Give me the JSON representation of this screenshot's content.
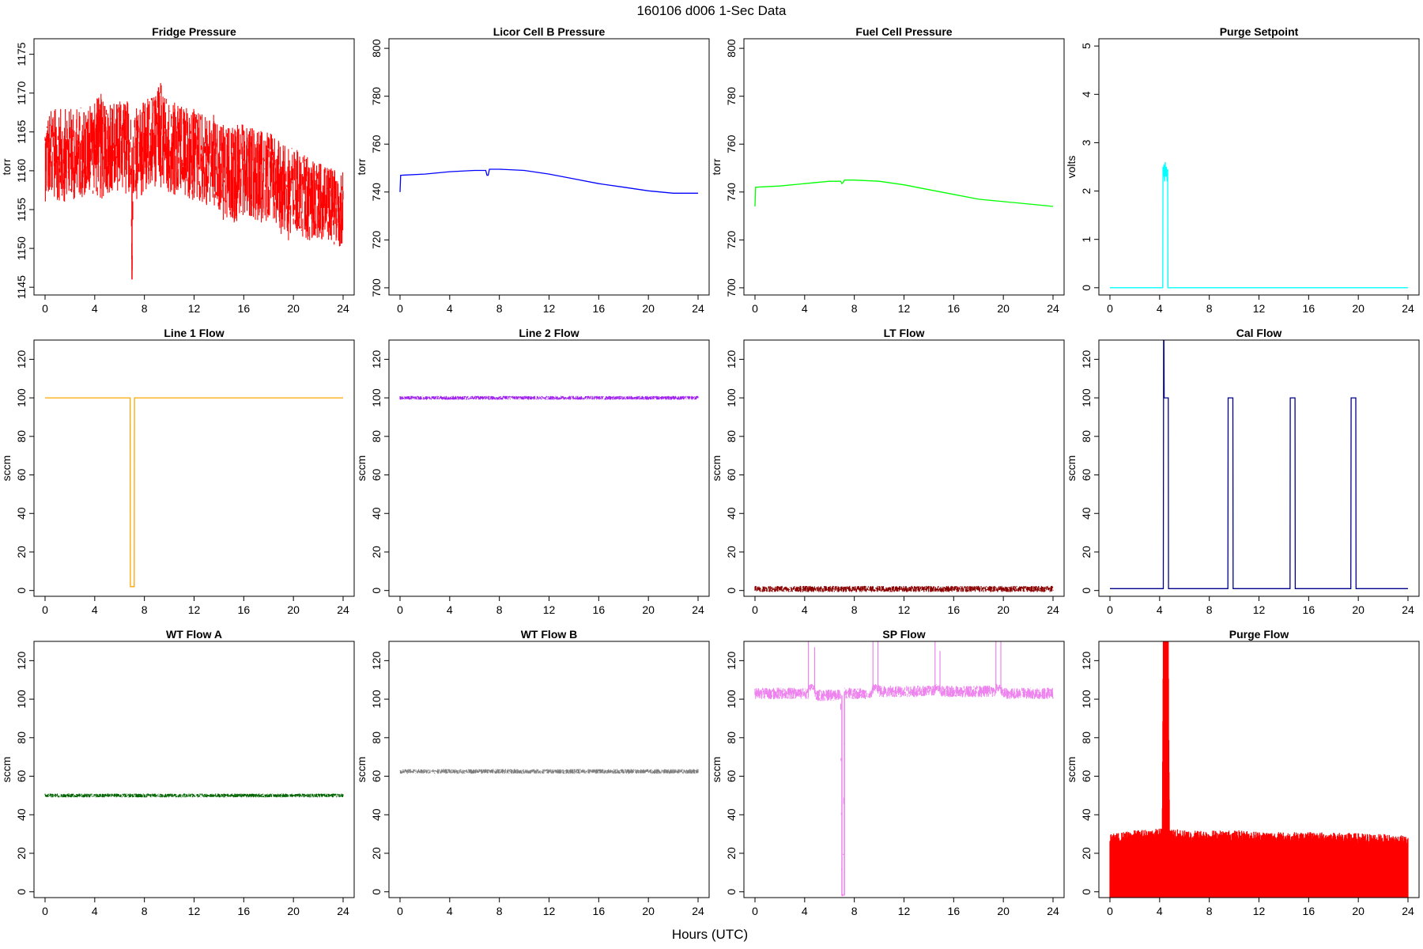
{
  "figure": {
    "title": "160106    d006    1-Sec Data",
    "xlabel": "Hours (UTC)"
  },
  "chart_data": [
    {
      "type": "line",
      "title": "Fridge Pressure",
      "ylabel": "torr",
      "color": "#ff0000",
      "xlim": [
        0,
        24
      ],
      "ylim": [
        1144,
        1177
      ],
      "yticks": [
        1145,
        1150,
        1155,
        1160,
        1165,
        1170,
        1175
      ],
      "ytick_labels": [
        "1145",
        "1150",
        "1155",
        "1160",
        "1165",
        "1170",
        "1175"
      ],
      "xticks": [
        0,
        4,
        8,
        12,
        16,
        20,
        24
      ],
      "xtick_labels": [
        "0",
        "4",
        "8",
        "12",
        "16",
        "20",
        "24"
      ],
      "style": "band",
      "series": [
        {
          "x": [
            0,
            2,
            4,
            4.5,
            5,
            6,
            6.9,
            7,
            7.1,
            8,
            9.6,
            10,
            12,
            14,
            14.5,
            16,
            18,
            19.5,
            20,
            22,
            24
          ],
          "y": [
            1162,
            1162,
            1163,
            1163,
            1163,
            1163,
            1163,
            1146,
            1162,
            1163,
            1165,
            1163,
            1162,
            1161,
            1159,
            1160,
            1159,
            1157,
            1157,
            1156,
            1155
          ],
          "spread": [
            6,
            6,
            6,
            7,
            6,
            6,
            6,
            2,
            6,
            6,
            7,
            6,
            6,
            6,
            7,
            6,
            6,
            6,
            6,
            5,
            5
          ]
        }
      ]
    },
    {
      "type": "line",
      "title": "Licor Cell B Pressure",
      "ylabel": "torr",
      "color": "#0000ff",
      "xlim": [
        0,
        24
      ],
      "ylim": [
        697,
        804
      ],
      "yticks": [
        700,
        720,
        740,
        760,
        780,
        800
      ],
      "ytick_labels": [
        "700",
        "720",
        "740",
        "760",
        "780",
        "800"
      ],
      "xticks": [
        0,
        4,
        8,
        12,
        16,
        20,
        24
      ],
      "xtick_labels": [
        "0",
        "4",
        "8",
        "12",
        "16",
        "20",
        "24"
      ],
      "style": "line",
      "series": [
        {
          "x": [
            0,
            0.05,
            0.1,
            2,
            4,
            6,
            6.9,
            7,
            7.1,
            7.2,
            8,
            10,
            12,
            14,
            16,
            18,
            20,
            22,
            24
          ],
          "y": [
            740,
            747,
            747,
            747.5,
            748.5,
            749,
            749,
            747,
            747,
            749.5,
            749.5,
            749,
            747.5,
            745.5,
            743.5,
            742,
            740.5,
            739.5,
            739.5
          ]
        }
      ]
    },
    {
      "type": "line",
      "title": "Fuel Cell Pressure",
      "ylabel": "torr",
      "color": "#00ff00",
      "xlim": [
        0,
        24
      ],
      "ylim": [
        697,
        804
      ],
      "yticks": [
        700,
        720,
        740,
        760,
        780,
        800
      ],
      "ytick_labels": [
        "700",
        "720",
        "740",
        "760",
        "780",
        "800"
      ],
      "xticks": [
        0,
        4,
        8,
        12,
        16,
        20,
        24
      ],
      "xtick_labels": [
        "0",
        "4",
        "8",
        "12",
        "16",
        "20",
        "24"
      ],
      "style": "line",
      "series": [
        {
          "x": [
            0,
            0.05,
            0.1,
            2,
            4,
            6,
            6.9,
            7,
            7.1,
            7.2,
            8,
            10,
            12,
            14,
            16,
            18,
            20,
            22,
            24
          ],
          "y": [
            734,
            742,
            742,
            742.5,
            743.5,
            744.5,
            744.5,
            743.5,
            744,
            745,
            745,
            744.5,
            743,
            741,
            739,
            737,
            736,
            735,
            734
          ]
        }
      ]
    },
    {
      "type": "line",
      "title": "Purge Setpoint",
      "ylabel": "volts",
      "color": "#00ffff",
      "xlim": [
        0,
        24
      ],
      "ylim": [
        -0.15,
        5.15
      ],
      "yticks": [
        0,
        1,
        2,
        3,
        4,
        5
      ],
      "ytick_labels": [
        "0",
        "1",
        "2",
        "3",
        "4",
        "5"
      ],
      "xticks": [
        0,
        4,
        8,
        12,
        16,
        20,
        24
      ],
      "xtick_labels": [
        "0",
        "4",
        "8",
        "12",
        "16",
        "20",
        "24"
      ],
      "style": "line",
      "series": [
        {
          "x": [
            0,
            4.25,
            4.27,
            4.3,
            4.35,
            4.4,
            4.45,
            4.5,
            4.55,
            4.6,
            4.65,
            4.67,
            24
          ],
          "y": [
            0,
            0,
            2.5,
            2.3,
            2.55,
            2.2,
            2.6,
            2.3,
            2.5,
            2.2,
            2.45,
            0,
            0
          ]
        }
      ]
    },
    {
      "type": "line",
      "title": "Line 1 Flow",
      "ylabel": "sccm",
      "color": "#ffa500",
      "xlim": [
        0,
        24
      ],
      "ylim": [
        -3,
        130
      ],
      "yticks": [
        0,
        20,
        40,
        60,
        80,
        100,
        120
      ],
      "ytick_labels": [
        "0",
        "20",
        "40",
        "60",
        "80",
        "100",
        "120"
      ],
      "xticks": [
        0,
        4,
        8,
        12,
        16,
        20,
        24
      ],
      "xtick_labels": [
        "0",
        "4",
        "8",
        "12",
        "16",
        "20",
        "24"
      ],
      "style": "line",
      "series": [
        {
          "x": [
            0,
            6.85,
            6.87,
            7.18,
            7.2,
            24
          ],
          "y": [
            100,
            100,
            2,
            2,
            100,
            100
          ]
        }
      ]
    },
    {
      "type": "line",
      "title": "Line 2 Flow",
      "ylabel": "sccm",
      "color": "#a020f0",
      "xlim": [
        0,
        24
      ],
      "ylim": [
        -3,
        130
      ],
      "yticks": [
        0,
        20,
        40,
        60,
        80,
        100,
        120
      ],
      "ytick_labels": [
        "0",
        "20",
        "40",
        "60",
        "80",
        "100",
        "120"
      ],
      "xticks": [
        0,
        4,
        8,
        12,
        16,
        20,
        24
      ],
      "xtick_labels": [
        "0",
        "4",
        "8",
        "12",
        "16",
        "20",
        "24"
      ],
      "style": "band",
      "series": [
        {
          "x": [
            0,
            24
          ],
          "y": [
            100,
            100
          ],
          "spread": [
            1,
            1
          ]
        }
      ]
    },
    {
      "type": "line",
      "title": "LT Flow",
      "ylabel": "sccm",
      "color": "#8b0000",
      "xlim": [
        0,
        24
      ],
      "ylim": [
        -3,
        130
      ],
      "yticks": [
        0,
        20,
        40,
        60,
        80,
        100,
        120
      ],
      "ytick_labels": [
        "0",
        "20",
        "40",
        "60",
        "80",
        "100",
        "120"
      ],
      "xticks": [
        0,
        4,
        8,
        12,
        16,
        20,
        24
      ],
      "xtick_labels": [
        "0",
        "4",
        "8",
        "12",
        "16",
        "20",
        "24"
      ],
      "style": "band",
      "series": [
        {
          "x": [
            0,
            24
          ],
          "y": [
            0.8,
            0.8
          ],
          "spread": [
            1.6,
            1.6
          ]
        }
      ]
    },
    {
      "type": "line",
      "title": "Cal Flow",
      "ylabel": "sccm",
      "color": "#00008b",
      "xlim": [
        0,
        24
      ],
      "ylim": [
        -3,
        130
      ],
      "yticks": [
        0,
        20,
        40,
        60,
        80,
        100,
        120
      ],
      "ytick_labels": [
        "0",
        "20",
        "40",
        "60",
        "80",
        "100",
        "120"
      ],
      "xticks": [
        0,
        4,
        8,
        12,
        16,
        20,
        24
      ],
      "xtick_labels": [
        "0",
        "4",
        "8",
        "12",
        "16",
        "20",
        "24"
      ],
      "style": "line",
      "series": [
        {
          "x": [
            0,
            4.3,
            4.32,
            4.35,
            4.37,
            4.7,
            4.72,
            9.5,
            9.52,
            9.9,
            9.92,
            14.5,
            14.52,
            14.9,
            14.92,
            19.4,
            19.42,
            19.8,
            19.82,
            24
          ],
          "y": [
            1,
            1,
            130,
            130,
            100,
            100,
            1,
            1,
            100,
            100,
            1,
            1,
            100,
            100,
            1,
            1,
            100,
            100,
            1,
            1
          ]
        }
      ]
    },
    {
      "type": "line",
      "title": "WT Flow A",
      "ylabel": "sccm",
      "color": "#006400",
      "xlim": [
        0,
        24
      ],
      "ylim": [
        -3,
        130
      ],
      "yticks": [
        0,
        20,
        40,
        60,
        80,
        100,
        120
      ],
      "ytick_labels": [
        "0",
        "20",
        "40",
        "60",
        "80",
        "100",
        "120"
      ],
      "xticks": [
        0,
        4,
        8,
        12,
        16,
        20,
        24
      ],
      "xtick_labels": [
        "0",
        "4",
        "8",
        "12",
        "16",
        "20",
        "24"
      ],
      "style": "band",
      "series": [
        {
          "x": [
            0,
            24
          ],
          "y": [
            50,
            50
          ],
          "spread": [
            1,
            1
          ]
        }
      ]
    },
    {
      "type": "line",
      "title": "WT Flow B",
      "ylabel": "sccm",
      "color": "#808080",
      "xlim": [
        0,
        24
      ],
      "ylim": [
        -3,
        130
      ],
      "yticks": [
        0,
        20,
        40,
        60,
        80,
        100,
        120
      ],
      "ytick_labels": [
        "0",
        "20",
        "40",
        "60",
        "80",
        "100",
        "120"
      ],
      "xticks": [
        0,
        4,
        8,
        12,
        16,
        20,
        24
      ],
      "xtick_labels": [
        "0",
        "4",
        "8",
        "12",
        "16",
        "20",
        "24"
      ],
      "style": "band",
      "series": [
        {
          "x": [
            0,
            24
          ],
          "y": [
            62.5,
            62.5
          ],
          "spread": [
            1.2,
            1.2
          ]
        }
      ]
    },
    {
      "type": "line",
      "title": "SP Flow",
      "ylabel": "sccm",
      "color": "#ee82ee",
      "xlim": [
        0,
        24
      ],
      "ylim": [
        -3,
        130
      ],
      "yticks": [
        0,
        20,
        40,
        60,
        80,
        100,
        120
      ],
      "ytick_labels": [
        "0",
        "20",
        "40",
        "60",
        "80",
        "100",
        "120"
      ],
      "xticks": [
        0,
        4,
        8,
        12,
        16,
        20,
        24
      ],
      "xtick_labels": [
        "0",
        "4",
        "8",
        "12",
        "16",
        "20",
        "24"
      ],
      "style": "band",
      "series": [
        {
          "x": [
            0,
            4.3,
            4.35,
            4.8,
            4.85,
            6.9,
            7.0,
            7.1,
            7.2,
            9.4,
            9.5,
            9.9,
            10,
            14.4,
            14.5,
            14.9,
            15,
            19.3,
            19.4,
            19.8,
            19.9,
            24
          ],
          "y": [
            103,
            103,
            106,
            106,
            102,
            102,
            -2,
            -2,
            103,
            103,
            106,
            106,
            104,
            104,
            106,
            106,
            104,
            104,
            106,
            106,
            103,
            103
          ],
          "spread": [
            3,
            3,
            2,
            2,
            3,
            3,
            1,
            1,
            3,
            3,
            2,
            2,
            3,
            3,
            2,
            2,
            3,
            3,
            2,
            2,
            3,
            3
          ]
        }
      ],
      "spikes": [
        {
          "x": 4.3,
          "y": 130
        },
        {
          "x": 4.8,
          "y": 127
        },
        {
          "x": 9.5,
          "y": 130
        },
        {
          "x": 9.9,
          "y": 130
        },
        {
          "x": 14.5,
          "y": 130
        },
        {
          "x": 14.9,
          "y": 125
        },
        {
          "x": 19.4,
          "y": 130
        },
        {
          "x": 19.8,
          "y": 130
        }
      ]
    },
    {
      "type": "line",
      "title": "Purge Flow",
      "ylabel": "sccm",
      "color": "#ff0000",
      "xlim": [
        0,
        24
      ],
      "ylim": [
        -3,
        130
      ],
      "yticks": [
        0,
        20,
        40,
        60,
        80,
        100,
        120
      ],
      "ytick_labels": [
        "0",
        "20",
        "40",
        "60",
        "80",
        "100",
        "120"
      ],
      "xticks": [
        0,
        4,
        8,
        12,
        16,
        20,
        24
      ],
      "xtick_labels": [
        "0",
        "4",
        "8",
        "12",
        "16",
        "20",
        "24"
      ],
      "style": "fillband",
      "series": [
        {
          "x": [
            0,
            2,
            4,
            4.2,
            4.3,
            4.4,
            4.5,
            4.6,
            4.7,
            4.8,
            6,
            10,
            14,
            18,
            22,
            24
          ],
          "y": [
            -3,
            -3,
            -3,
            -3,
            -3,
            -3,
            -3,
            -3,
            -3,
            -3,
            -3,
            -3,
            -3,
            -3,
            -3,
            -3
          ],
          "upper": [
            30,
            32,
            33,
            33,
            130,
            130,
            130,
            130,
            130,
            33,
            32,
            32,
            31,
            31,
            30,
            29
          ]
        }
      ]
    }
  ]
}
